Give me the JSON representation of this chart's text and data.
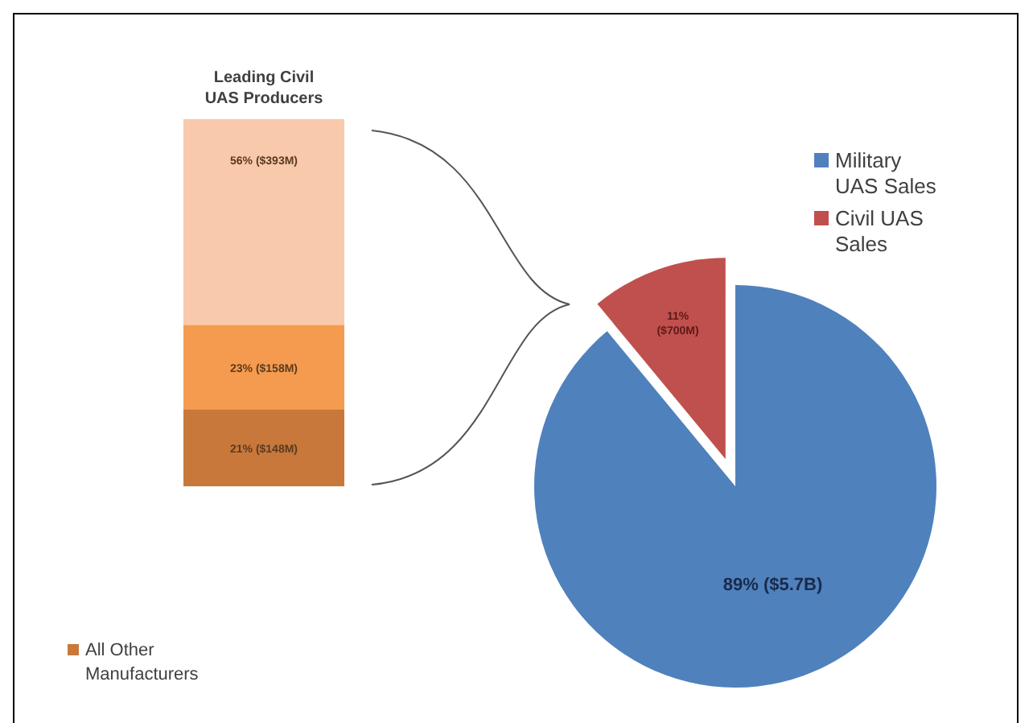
{
  "chart_data": [
    {
      "type": "bar",
      "title": "Leading Civil UAS Producers",
      "categories": [
        null
      ],
      "stacked": true,
      "ylim": [
        0,
        100
      ],
      "tick_labels": false,
      "legend": "bottom",
      "series": [
        {
          "name": "All Other Manufacturers",
          "color": "#c8783a",
          "values": [
            21
          ],
          "value_labels": [
            "21% ($148M)"
          ]
        },
        {
          "name": null,
          "color": "#f59b4f",
          "values": [
            23
          ],
          "value_labels": [
            "23% ($158M)"
          ]
        },
        {
          "name": null,
          "color": "#f9c9ab",
          "values": [
            56
          ],
          "value_labels": [
            "56% ($393M)"
          ]
        }
      ]
    },
    {
      "type": "pie",
      "categories": [
        "Military UAS Sales",
        "Civil UAS Sales"
      ],
      "values": [
        89,
        11
      ],
      "colors": [
        "#4f81bd",
        "#c0504d"
      ],
      "value_labels": [
        "89% ($5.7B)",
        "11% ($700M)"
      ],
      "legend": "top right"
    }
  ]
}
